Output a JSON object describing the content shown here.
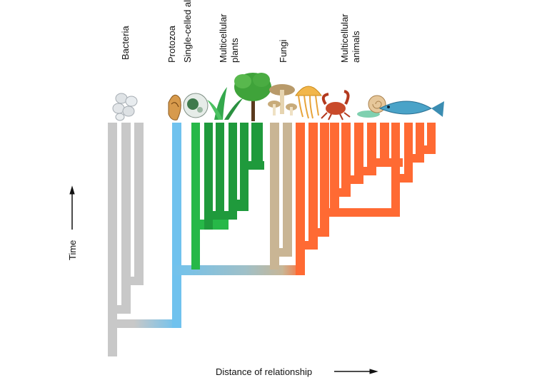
{
  "groups": [
    {
      "id": "bacteria",
      "label": "Bacteria",
      "color": "#c8c8c8"
    },
    {
      "id": "protozoa",
      "label": "Protozoa",
      "color": "#70c2ee"
    },
    {
      "id": "algae",
      "label": "Single-celled algae",
      "color": "#27b848"
    },
    {
      "id": "plants",
      "label": "Multicellular plants",
      "color": "#1f9a3c"
    },
    {
      "id": "fungi",
      "label": "Fungi",
      "color": "#c9b594"
    },
    {
      "id": "animals",
      "label": "Multicellular animals",
      "color": "#ff6a33"
    }
  ],
  "labels": {
    "bacteria": "Bacteria",
    "protozoa": "Protozoa",
    "algae": "Single-celled algae",
    "plants_line1": "Multicellular",
    "plants_line2": "plants",
    "fungi": "Fungi",
    "animals_line1": "Multicellular",
    "animals_line2": "animals"
  },
  "axes": {
    "x_label": "Distance of relationship",
    "y_label": "Time"
  },
  "icons": [
    "bacteria-cells-icon",
    "protozoa-icon",
    "algae-cell-icon",
    "fern-icon",
    "tree-icon",
    "mushroom-icon",
    "jellyfish-icon",
    "crab-icon",
    "snail-icon",
    "fish-icon"
  ]
}
